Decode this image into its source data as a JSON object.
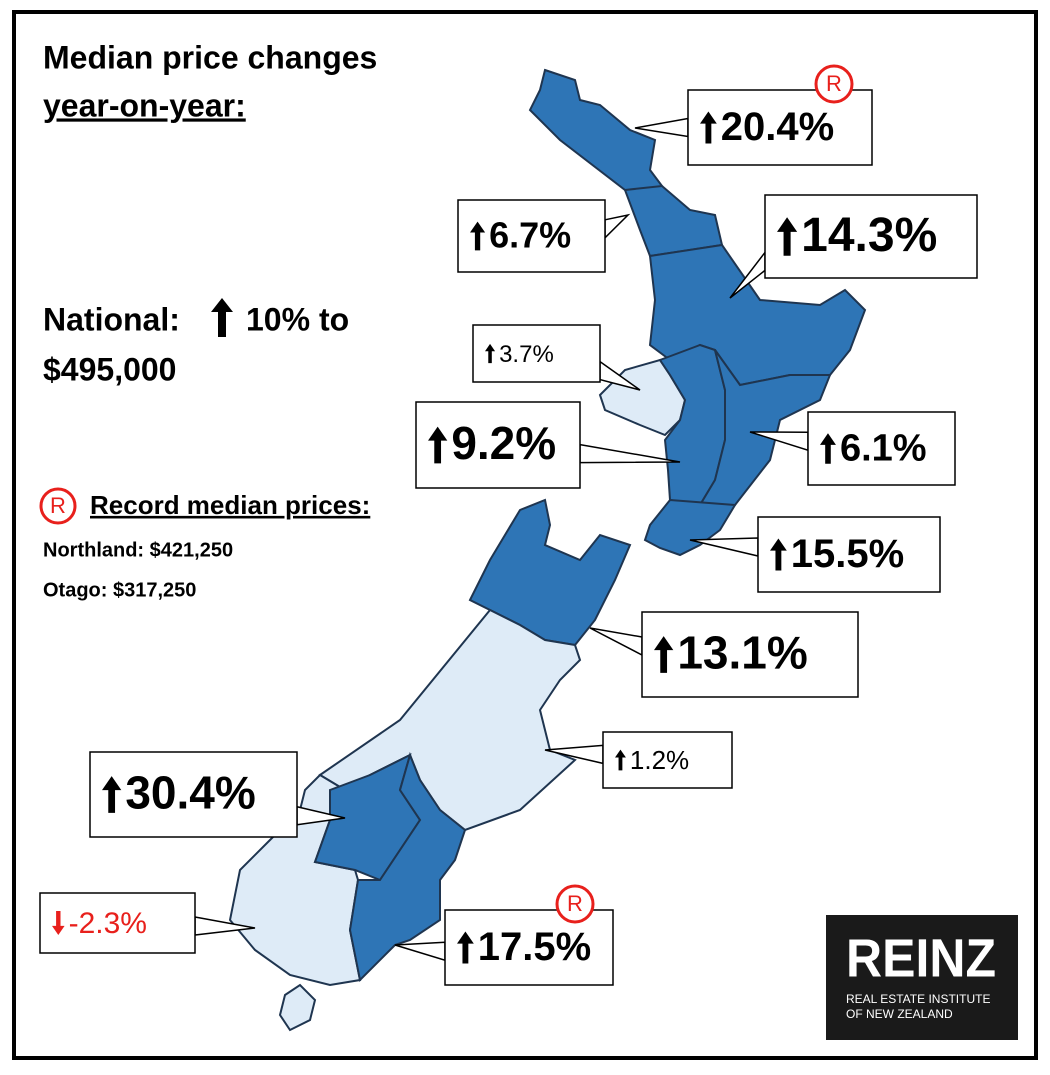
{
  "header": {
    "title": "Median price changes",
    "subtitle": "year-on-year:"
  },
  "national": {
    "label": "National:",
    "text": "10% to",
    "amount": "$495,000"
  },
  "records": {
    "badge": "R",
    "title": "Record median prices:",
    "items": [
      "Northland: $421,250",
      "Otago: $317,250"
    ]
  },
  "regions": [
    {
      "change": "20.4%",
      "direction": "up",
      "record": true,
      "color": "#000000"
    },
    {
      "change": "6.7%",
      "direction": "up",
      "record": false,
      "color": "#000000"
    },
    {
      "change": "14.3%",
      "direction": "up",
      "record": false,
      "color": "#000000"
    },
    {
      "change": "3.7%",
      "direction": "up",
      "record": false,
      "color": "#000000"
    },
    {
      "change": "9.2%",
      "direction": "up",
      "record": false,
      "color": "#000000"
    },
    {
      "change": "6.1%",
      "direction": "up",
      "record": false,
      "color": "#000000"
    },
    {
      "change": "15.5%",
      "direction": "up",
      "record": false,
      "color": "#000000"
    },
    {
      "change": "13.1%",
      "direction": "up",
      "record": false,
      "color": "#000000"
    },
    {
      "change": "1.2%",
      "direction": "up",
      "record": false,
      "color": "#000000"
    },
    {
      "change": "30.4%",
      "direction": "up",
      "record": false,
      "color": "#000000"
    },
    {
      "change": "-2.3%",
      "direction": "down",
      "record": false,
      "color": "#e8201c"
    },
    {
      "change": "17.5%",
      "direction": "up",
      "record": true,
      "color": "#000000"
    }
  ],
  "logo": {
    "name": "REINZ",
    "line1": "REAL ESTATE INSTITUTE",
    "line2": "OF NEW ZEALAND"
  }
}
